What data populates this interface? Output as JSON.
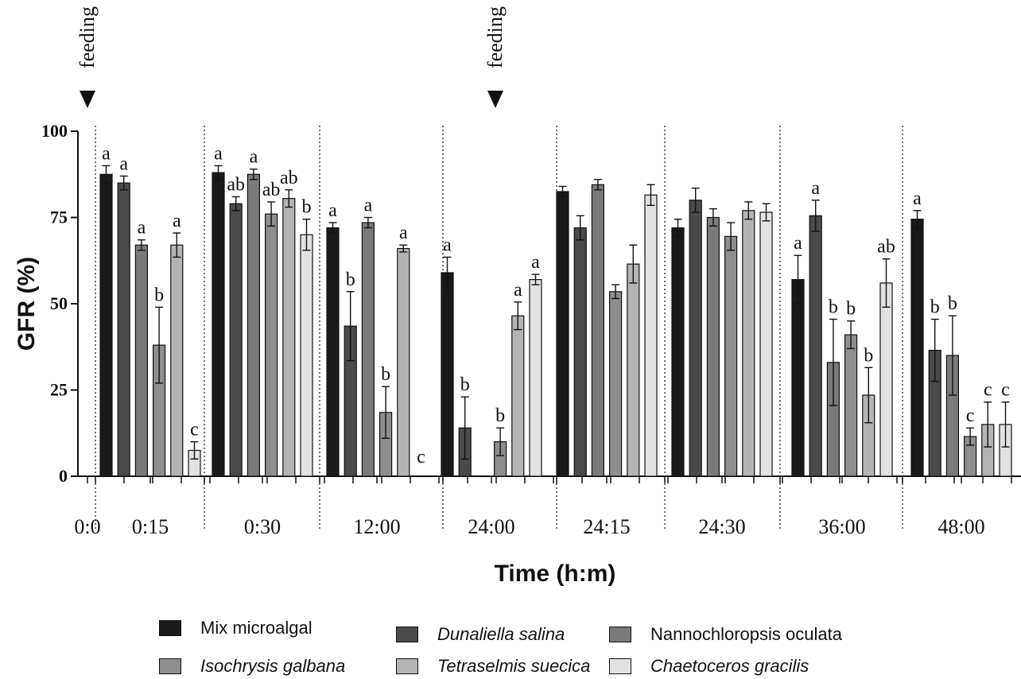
{
  "chart_data": {
    "type": "bar",
    "ylabel": "GFR (%)",
    "xlabel": "Time (h:m)",
    "ylim": [
      0,
      100
    ],
    "yticks": [
      0,
      25,
      50,
      75,
      100
    ],
    "categories": [
      "0:0",
      "0:15",
      "0:30",
      "12:00",
      "24:00",
      "24:15",
      "24:30",
      "36:00",
      "48:00"
    ],
    "feeding_label": "feeding",
    "feeding_at": [
      "0:0",
      "24:00"
    ],
    "series": [
      {
        "name": "Mix microalgal",
        "italic": false,
        "color": "#1a1a1a",
        "values": [
          null,
          87.5,
          88,
          72,
          59,
          82.5,
          72,
          57,
          74.5
        ],
        "errors": [
          null,
          2.5,
          2,
          1.5,
          4.5,
          1.5,
          2.5,
          7,
          2.5
        ],
        "letters": [
          null,
          "a",
          "a",
          "a",
          "a",
          "",
          "",
          "a",
          "a"
        ]
      },
      {
        "name": "Dunaliella salina",
        "italic": true,
        "color": "#4a4a4a",
        "values": [
          null,
          85,
          79,
          43.5,
          14,
          72,
          80,
          75.5,
          36.5
        ],
        "errors": [
          null,
          2,
          2,
          10,
          9,
          3.5,
          3.5,
          4.5,
          9
        ],
        "letters": [
          null,
          "a",
          "ab",
          "b",
          "b",
          "",
          "",
          "a",
          "b"
        ]
      },
      {
        "name": "Nannochloropsis oculata",
        "italic": false,
        "color": "#7a7a7a",
        "values": [
          null,
          67,
          87.5,
          73.5,
          0,
          84.5,
          75,
          33,
          35
        ],
        "errors": [
          null,
          1.5,
          1.5,
          1.5,
          null,
          1.5,
          2.5,
          12.5,
          11.5
        ],
        "letters": [
          null,
          "a",
          "a",
          "a",
          "",
          "",
          "",
          "b",
          "b"
        ]
      },
      {
        "name": "Isochrysis galbana",
        "italic": true,
        "color": "#8e8e8e",
        "values": [
          null,
          38,
          76,
          18.5,
          10,
          53.5,
          69.5,
          41,
          11.5
        ],
        "errors": [
          null,
          11,
          3.5,
          7.5,
          4,
          2,
          4,
          4,
          2.5
        ],
        "letters": [
          null,
          "b",
          "ab",
          "b",
          "b",
          "",
          "",
          "b",
          "c"
        ]
      },
      {
        "name": "Tetraselmis suecica",
        "italic": true,
        "color": "#b4b4b4",
        "values": [
          null,
          67,
          80.5,
          66,
          46.5,
          61.5,
          77,
          23.5,
          15
        ],
        "errors": [
          null,
          3.5,
          2.5,
          1,
          4,
          5.5,
          2.5,
          8,
          6.5
        ],
        "letters": [
          null,
          "a",
          "ab",
          "a",
          "a",
          "",
          "",
          "b",
          "c"
        ]
      },
      {
        "name": "Chaetoceros gracilis",
        "italic": true,
        "color": "#e2e2e2",
        "values": [
          null,
          7.5,
          70,
          0,
          57,
          81.5,
          76.5,
          56,
          15
        ],
        "errors": [
          null,
          2.5,
          4.5,
          null,
          1.5,
          3,
          2.5,
          7,
          6.5
        ],
        "letters": [
          null,
          "c",
          "b",
          "c",
          "a",
          "",
          "",
          "ab",
          "c"
        ]
      }
    ]
  }
}
